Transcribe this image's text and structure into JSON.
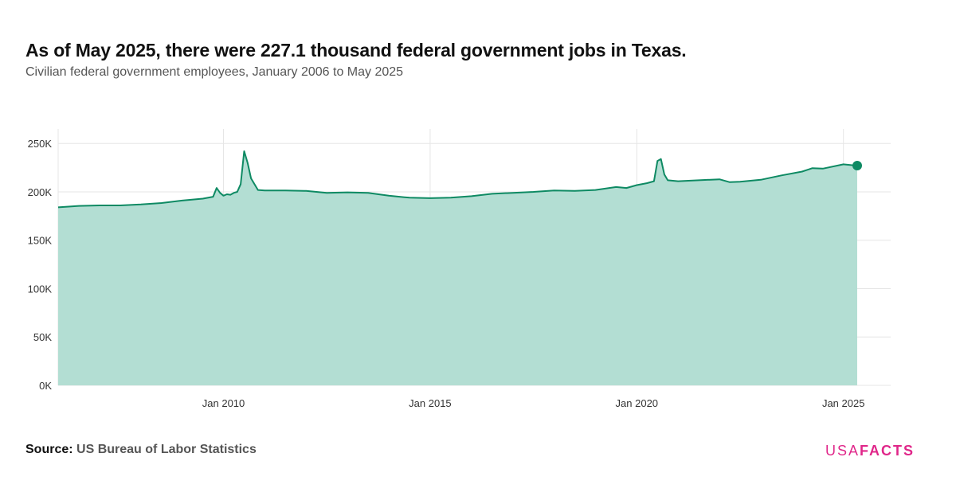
{
  "title": "As of May 2025, there were 227.1 thousand federal government jobs in Texas.",
  "subtitle": "Civilian federal government employees, January 2006 to May 2025",
  "source_label": "Source:",
  "source_text": "US Bureau of Labor Statistics",
  "logo": {
    "part1": "USA",
    "part2": "FACTS",
    "color": "#e0278a"
  },
  "colors": {
    "line": "#0e8a63",
    "area": "#b3ded3",
    "grid": "#e6e6e6"
  },
  "chart_data": {
    "type": "area",
    "title": "As of May 2025, there were 227.1 thousand federal government jobs in Texas.",
    "subtitle": "Civilian federal government employees, January 2006 to May 2025",
    "xlabel": "",
    "ylabel": "",
    "xlim": [
      "2006-01",
      "2025-05"
    ],
    "ylim": [
      0,
      265000
    ],
    "y_ticks": [
      0,
      50000,
      100000,
      150000,
      200000,
      250000
    ],
    "y_tick_labels": [
      "0K",
      "50K",
      "100K",
      "150K",
      "200K",
      "250K"
    ],
    "x_ticks": [
      "2010-01",
      "2015-01",
      "2020-01",
      "2025-01"
    ],
    "x_tick_labels": [
      "Jan 2010",
      "Jan 2015",
      "Jan 2020",
      "Jan 2025"
    ],
    "grid": true,
    "highlight": {
      "x": "2025-05",
      "y": 227100
    },
    "series": [
      {
        "points": [
          [
            "2006-01",
            184000
          ],
          [
            "2006-07",
            185500
          ],
          [
            "2007-01",
            186000
          ],
          [
            "2007-07",
            186000
          ],
          [
            "2008-01",
            187000
          ],
          [
            "2008-07",
            188500
          ],
          [
            "2009-01",
            191000
          ],
          [
            "2009-07",
            193000
          ],
          [
            "2009-10",
            195000
          ],
          [
            "2009-11",
            204000
          ],
          [
            "2009-12",
            199000
          ],
          [
            "2010-01",
            196000
          ],
          [
            "2010-02",
            197500
          ],
          [
            "2010-03",
            197000
          ],
          [
            "2010-04",
            199000
          ],
          [
            "2010-05",
            200000
          ],
          [
            "2010-06",
            208000
          ],
          [
            "2010-07",
            242000
          ],
          [
            "2010-08",
            230000
          ],
          [
            "2010-09",
            214000
          ],
          [
            "2010-10",
            208000
          ],
          [
            "2010-11",
            202000
          ],
          [
            "2011-01",
            201500
          ],
          [
            "2011-07",
            201500
          ],
          [
            "2012-01",
            201000
          ],
          [
            "2012-07",
            199000
          ],
          [
            "2013-01",
            199500
          ],
          [
            "2013-07",
            199000
          ],
          [
            "2014-01",
            196000
          ],
          [
            "2014-07",
            194000
          ],
          [
            "2015-01",
            193500
          ],
          [
            "2015-07",
            194000
          ],
          [
            "2016-01",
            195500
          ],
          [
            "2016-07",
            198000
          ],
          [
            "2017-01",
            199000
          ],
          [
            "2017-07",
            200000
          ],
          [
            "2018-01",
            201500
          ],
          [
            "2018-07",
            201000
          ],
          [
            "2019-01",
            202000
          ],
          [
            "2019-07",
            205000
          ],
          [
            "2019-10",
            204000
          ],
          [
            "2020-01",
            207000
          ],
          [
            "2020-04",
            209000
          ],
          [
            "2020-06",
            211000
          ],
          [
            "2020-07",
            232000
          ],
          [
            "2020-08",
            234000
          ],
          [
            "2020-09",
            218000
          ],
          [
            "2020-10",
            212000
          ],
          [
            "2021-01",
            211000
          ],
          [
            "2021-07",
            212000
          ],
          [
            "2022-01",
            213000
          ],
          [
            "2022-04",
            210000
          ],
          [
            "2022-07",
            210500
          ],
          [
            "2023-01",
            212500
          ],
          [
            "2023-07",
            217000
          ],
          [
            "2024-01",
            221000
          ],
          [
            "2024-04",
            224500
          ],
          [
            "2024-07",
            224000
          ],
          [
            "2025-01",
            228500
          ],
          [
            "2025-05",
            227100
          ]
        ]
      }
    ]
  }
}
